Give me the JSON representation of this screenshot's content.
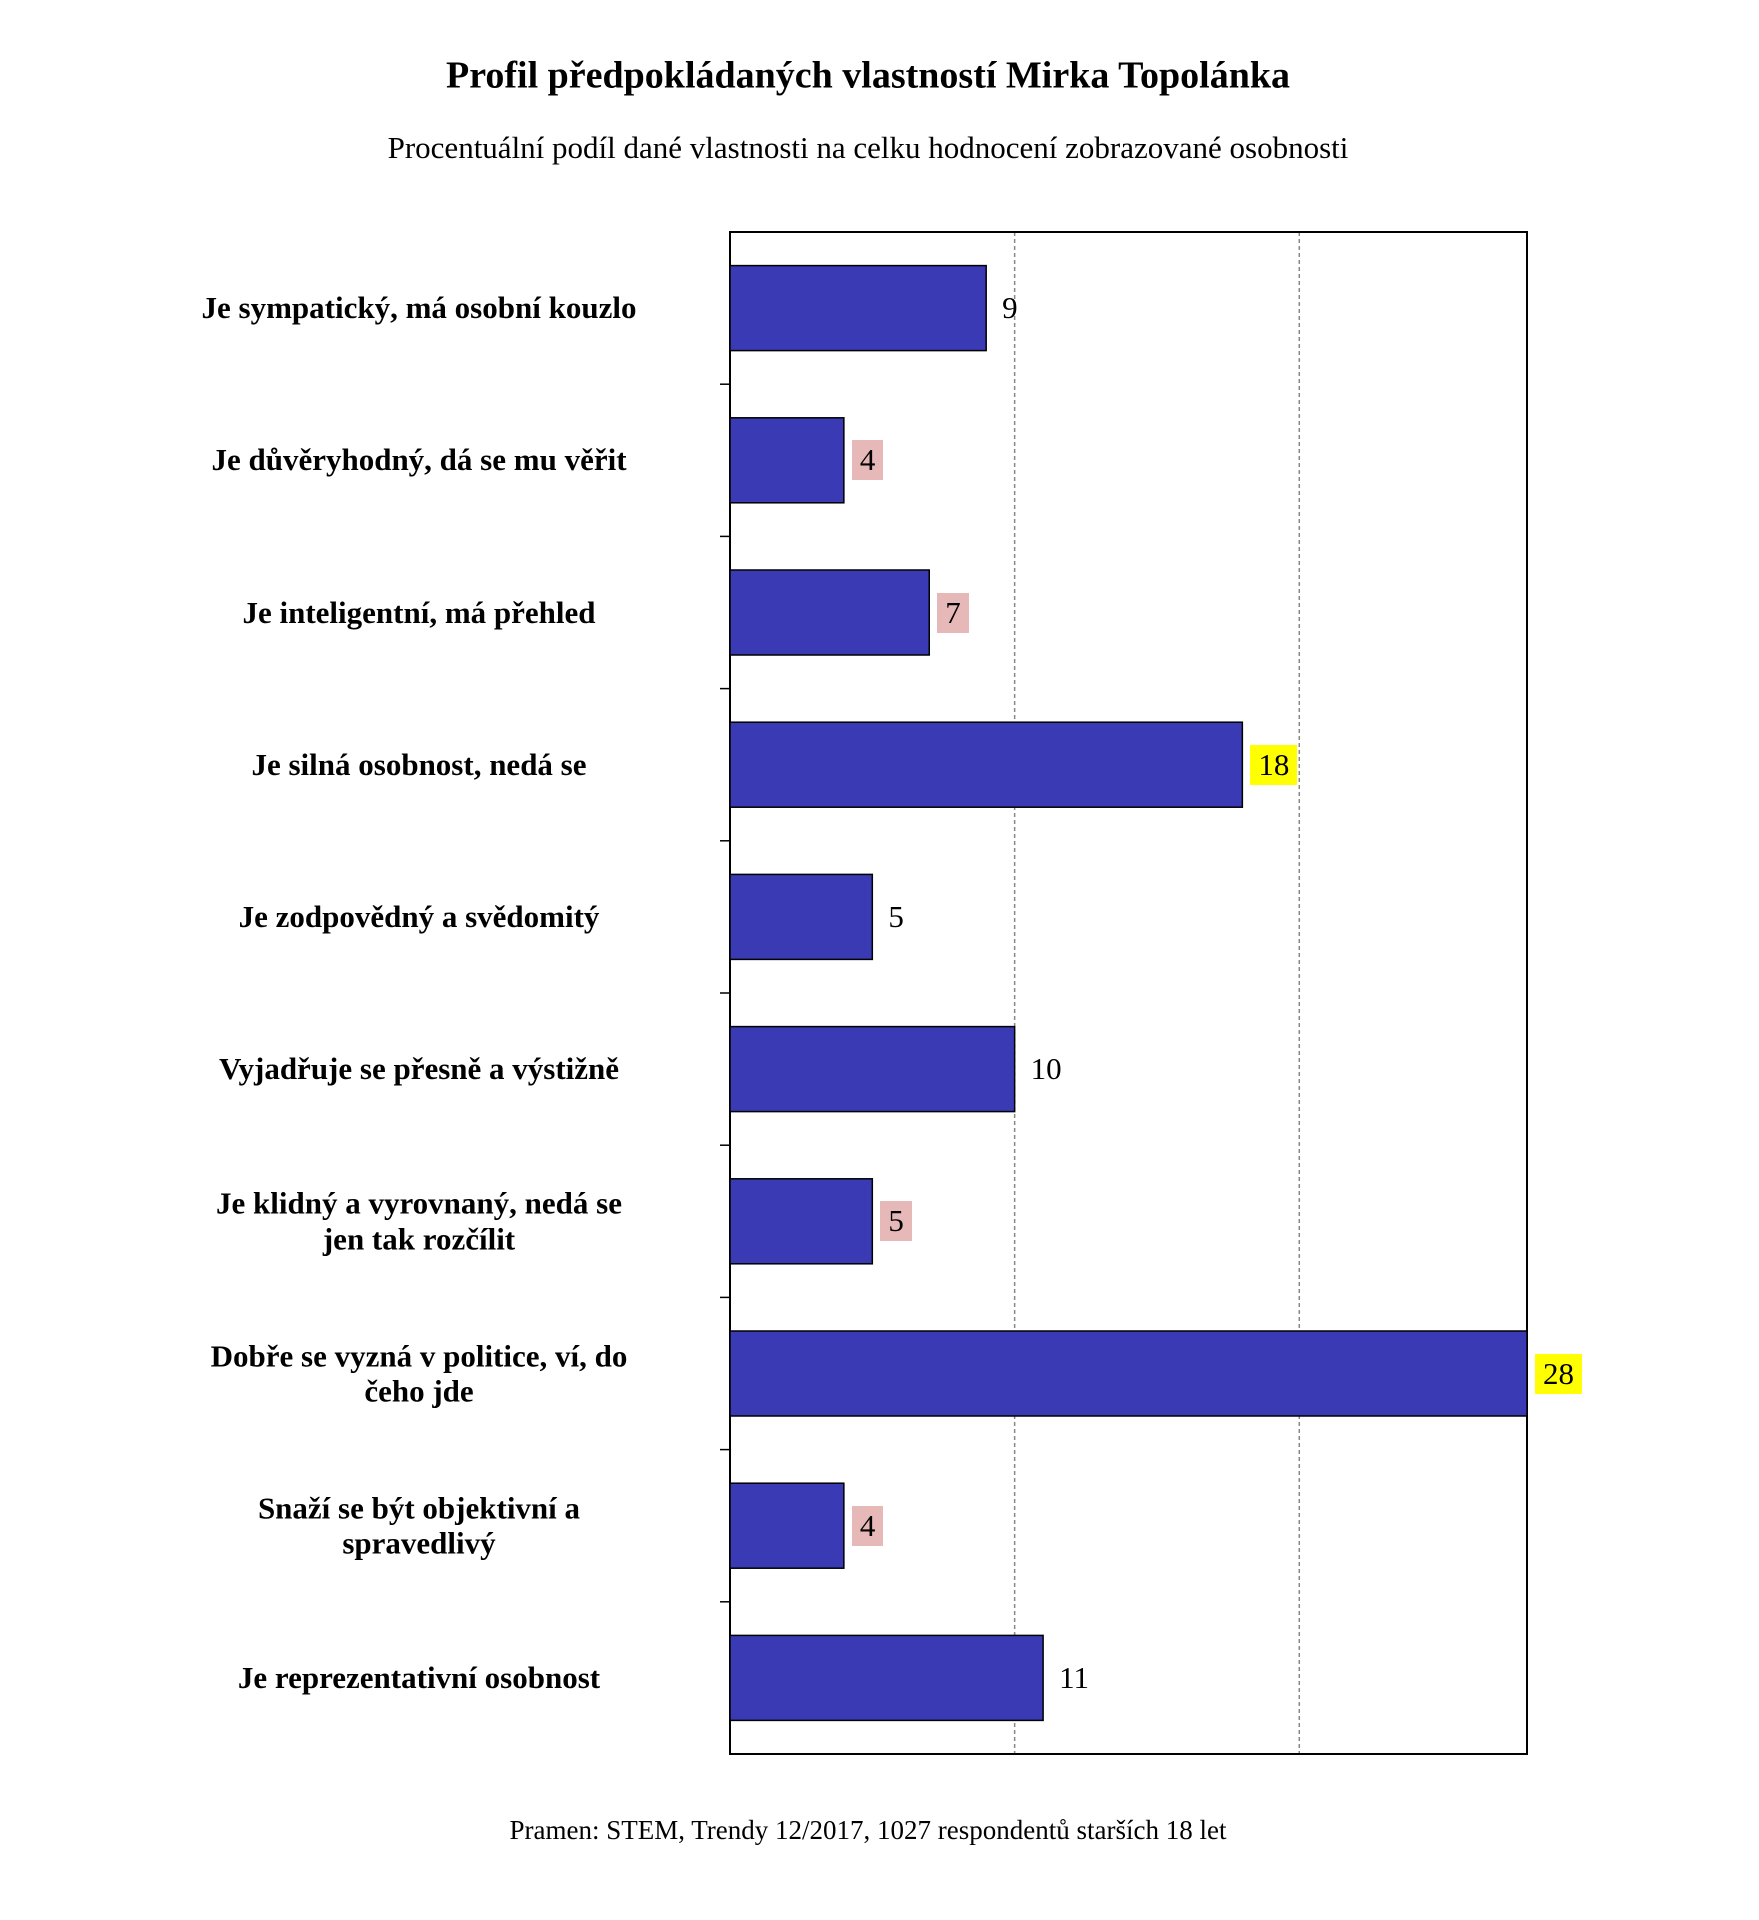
{
  "chart_data": {
    "type": "bar",
    "orientation": "horizontal",
    "title": "Profil předpokládaných vlastností Mirka Topolánka",
    "subtitle": "Procentuální podíl dané vlastnosti na celku hodnocení zobrazované osobnosti",
    "source": "Pramen: STEM, Trendy 12/2017, 1027 respondentů starších 18 let",
    "categories": [
      "Je sympatický, má osobní kouzlo",
      "Je důvěryhodný, dá se mu věřit",
      "Je inteligentní, má přehled",
      "Je silná osobnost, nedá se",
      "Je zodpovědný a svědomitý",
      "Vyjadřuje se přesně a výstižně",
      "Je klidný a vyrovnaný, nedá se\njen tak rozčílit",
      "Dobře se vyzná v politice, ví, do\nčeho jde",
      "Snaží se být objektivní a\nspravedlivý",
      "Je reprezentativní osobnost"
    ],
    "values": [
      9,
      4,
      7,
      18,
      5,
      10,
      5,
      28,
      4,
      11
    ],
    "label_highlights": [
      null,
      "#e6b8b7",
      "#e6b8b7",
      "#ffff00",
      null,
      null,
      "#e6b8b7",
      "#ffff00",
      "#e6b8b7",
      null
    ],
    "color": "#3a3ab5",
    "xlim": [
      0,
      28
    ],
    "xticks": [
      0,
      10,
      20
    ],
    "grid": true
  }
}
